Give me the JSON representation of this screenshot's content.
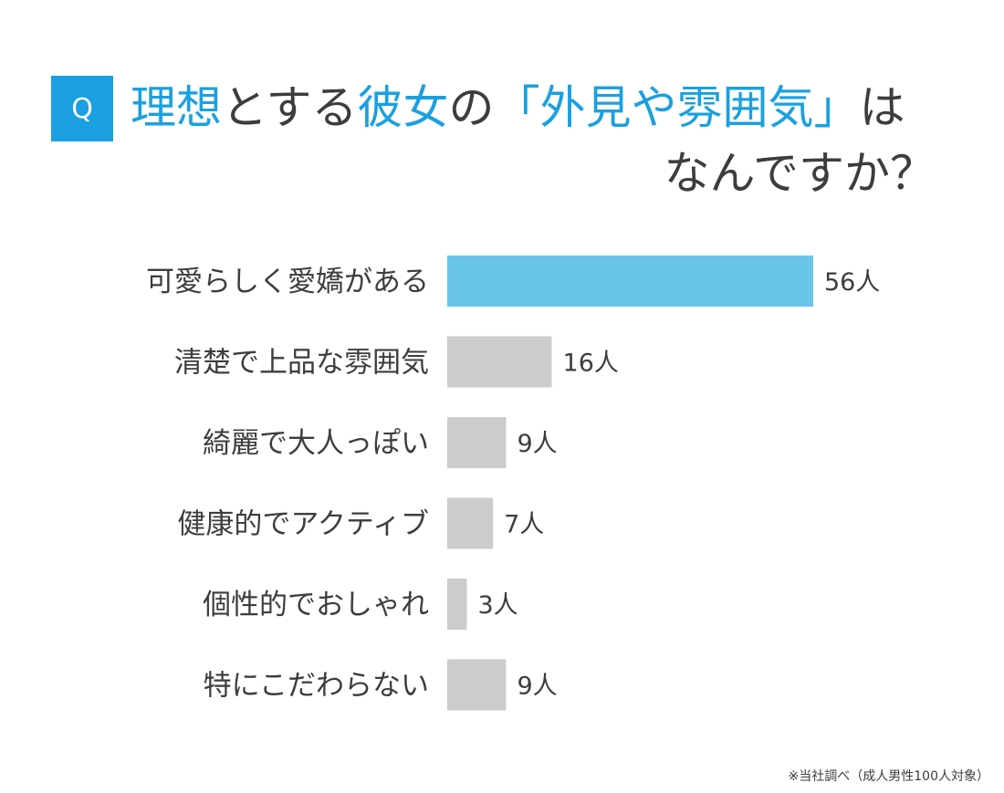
{
  "badge": "Q",
  "title": {
    "line1": [
      {
        "text": "理想",
        "accent": true
      },
      {
        "text": "とする",
        "accent": false
      },
      {
        "text": "彼女",
        "accent": true
      },
      {
        "text": "の",
        "accent": false
      },
      {
        "text": "「外見や雰囲気」",
        "accent": true
      },
      {
        "text": "は",
        "accent": false
      }
    ],
    "line2": "なんですか？"
  },
  "colors": {
    "accent": "#1aa0e0",
    "highlight_bar": "#6ac5ea",
    "bar": "#cccccc",
    "text": "#3d3d3d"
  },
  "chart_data": {
    "type": "bar",
    "orientation": "horizontal",
    "categories": [
      "可愛らしく愛嬌がある",
      "清楚で上品な雰囲気",
      "綺麗で大人っぽい",
      "健康的でアクティブ",
      "個性的でおしゃれ",
      "特にこだわらない"
    ],
    "values": [
      56,
      16,
      9,
      7,
      3,
      9
    ],
    "value_labels": [
      "56人",
      "16人",
      "9人",
      "7人",
      "3人",
      "9人"
    ],
    "highlight_index": 0,
    "unit": "人"
  },
  "footnote": "※当社調べ（成人男性100人対象）"
}
